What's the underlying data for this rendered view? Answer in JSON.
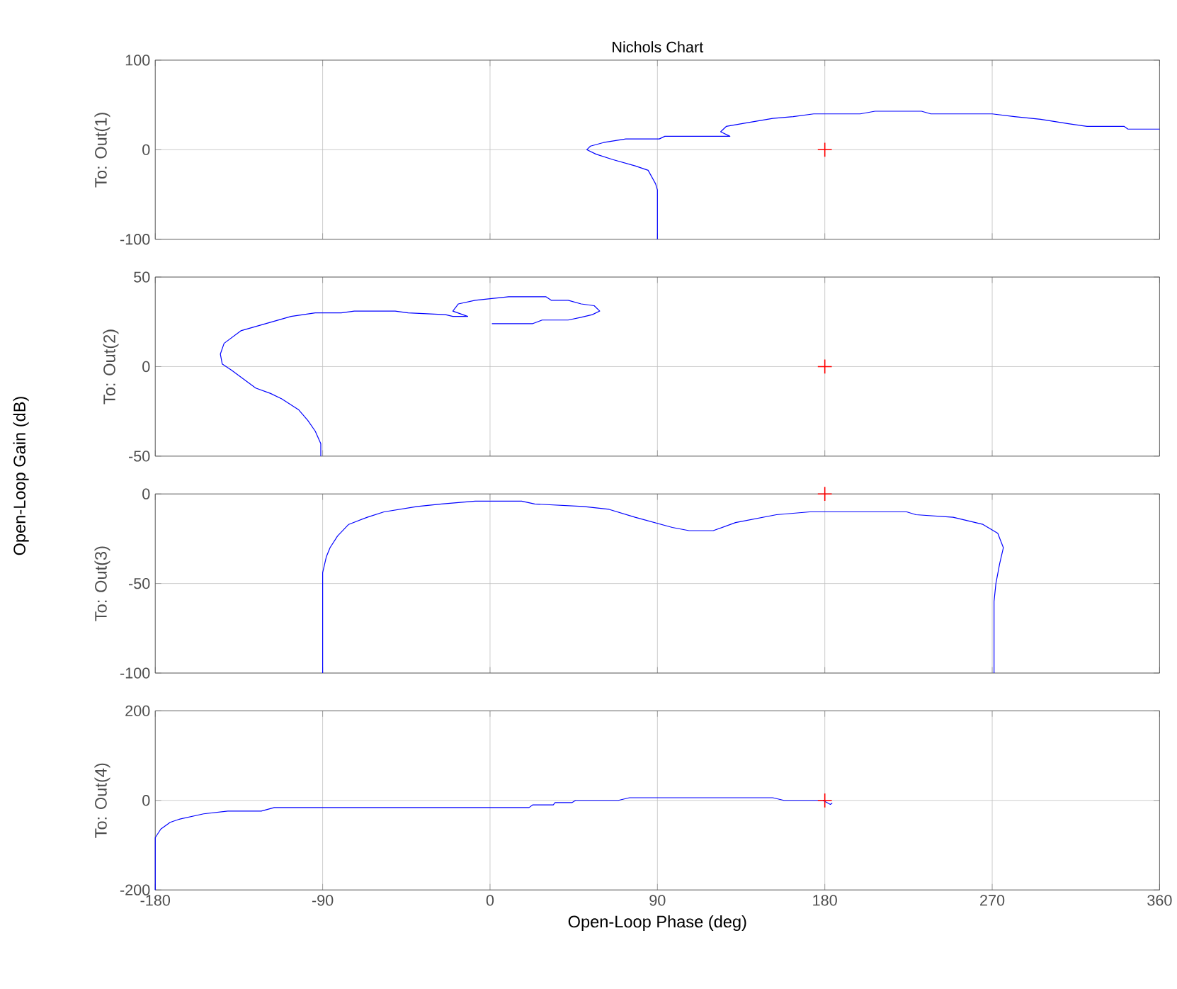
{
  "chart_data": [
    {
      "type": "line",
      "title": "Nichols Chart",
      "ylabel": "To: Out(1)",
      "annotations": [
        "Open-Loop Gain (dB)"
      ],
      "xlim": [
        -180,
        360
      ],
      "ylim": [
        -100,
        100
      ],
      "xticks": [
        -180,
        -90,
        0,
        90,
        180,
        270,
        360
      ],
      "yticks": [
        -100,
        0,
        100
      ],
      "grid": true,
      "tick_labels": "y",
      "series": [
        {
          "color": "#0000ff",
          "marker": "none",
          "x": [
            90,
            90,
            89,
            85,
            78,
            66,
            57,
            52,
            54,
            61,
            73,
            91,
            94,
            129,
            124,
            127,
            138,
            152,
            163,
            174,
            199,
            207,
            232,
            237,
            270,
            282,
            296,
            311,
            321,
            341,
            343,
            360
          ],
          "values": [
            -100,
            -45,
            -38,
            -23,
            -18,
            -11,
            -5,
            0,
            4,
            8,
            12,
            12,
            15,
            15,
            20,
            26,
            30,
            35,
            37,
            40,
            40,
            43,
            43,
            40,
            40,
            37,
            34,
            29,
            26,
            26,
            23,
            23
          ]
        },
        {
          "type": "scatter",
          "color": "#ff0000",
          "marker": "cross",
          "x": [
            180
          ],
          "values": [
            0
          ]
        }
      ]
    },
    {
      "type": "line",
      "ylabel": "To: Out(2)",
      "xlim": [
        -180,
        360
      ],
      "ylim": [
        -50,
        50
      ],
      "xticks": [
        -180,
        -90,
        0,
        90,
        180,
        270,
        360
      ],
      "yticks": [
        -50,
        0,
        50
      ],
      "grid": true,
      "tick_labels": "y",
      "series": [
        {
          "color": "#0000ff",
          "marker": "none",
          "x": [
            -91,
            -91,
            -94,
            -98,
            -103,
            -112,
            -118,
            -126,
            -139,
            -144,
            -145,
            -143,
            -134,
            -107,
            -94,
            -80,
            -73,
            -51,
            -44,
            -24,
            -20,
            -12,
            -20,
            -17,
            -8,
            10,
            30,
            33,
            42,
            49,
            56,
            59,
            55,
            49,
            42,
            28,
            23,
            1
          ],
          "values": [
            -50,
            -43,
            -36,
            -30,
            -24,
            -18,
            -15,
            -12,
            -2,
            1.5,
            7,
            13,
            20,
            28,
            30,
            30,
            31,
            31,
            30,
            29,
            28,
            28,
            31,
            35,
            37,
            39,
            39,
            37,
            37,
            35,
            34,
            31,
            29,
            27.5,
            26,
            26,
            24,
            24
          ]
        },
        {
          "type": "scatter",
          "color": "#ff0000",
          "marker": "cross",
          "x": [
            180
          ],
          "values": [
            0
          ]
        }
      ]
    },
    {
      "type": "line",
      "ylabel": "To: Out(3)",
      "xlim": [
        -180,
        360
      ],
      "ylim": [
        -100,
        0
      ],
      "xticks": [
        -180,
        -90,
        0,
        90,
        180,
        270,
        360
      ],
      "yticks": [
        -100,
        -50,
        0
      ],
      "grid": true,
      "tick_labels": "y",
      "series": [
        {
          "color": "#0000ff",
          "marker": "none",
          "x": [
            -90,
            -90,
            -88,
            -86,
            -82,
            -76,
            -66,
            -57,
            -39,
            -26,
            -8,
            17,
            24,
            50,
            64,
            78,
            98,
            107,
            120,
            132,
            154,
            172,
            224,
            229,
            249,
            265,
            273,
            276,
            274,
            272,
            271,
            271
          ],
          "values": [
            -100,
            -44,
            -35,
            -30,
            -23.5,
            -17,
            -13,
            -10,
            -7,
            -5.6,
            -4,
            -4,
            -5.6,
            -7,
            -8.6,
            -13,
            -18.7,
            -20.5,
            -20.5,
            -16,
            -11.6,
            -10,
            -10,
            -11.6,
            -13,
            -17,
            -22,
            -30,
            -39,
            -50,
            -60,
            -100
          ]
        },
        {
          "type": "scatter",
          "color": "#ff0000",
          "marker": "cross",
          "x": [
            180
          ],
          "values": [
            0
          ]
        }
      ]
    },
    {
      "type": "line",
      "ylabel": "To: Out(4)",
      "xlabel": "Open-Loop Phase (deg)",
      "xlim": [
        -180,
        360
      ],
      "ylim": [
        -200,
        200
      ],
      "xticks": [
        -180,
        -90,
        0,
        90,
        180,
        270,
        360
      ],
      "yticks": [
        -200,
        0,
        200
      ],
      "grid": true,
      "series": [
        {
          "color": "#0000ff",
          "marker": "none",
          "x": [
            -180,
            -180,
            -177,
            -172,
            -167,
            -154,
            -141,
            -123,
            -116,
            21,
            23,
            34,
            35,
            44,
            46,
            69,
            75,
            152,
            158,
            179,
            183,
            184
          ],
          "values": [
            -200,
            -83,
            -64,
            -49,
            -42,
            -30,
            -24,
            -24,
            -16,
            -16,
            -10,
            -10,
            -5,
            -5,
            0,
            0,
            6,
            6,
            0,
            0,
            -9,
            -6
          ]
        },
        {
          "type": "scatter",
          "color": "#ff0000",
          "marker": "cross",
          "x": [
            180
          ],
          "values": [
            0
          ]
        }
      ]
    }
  ]
}
